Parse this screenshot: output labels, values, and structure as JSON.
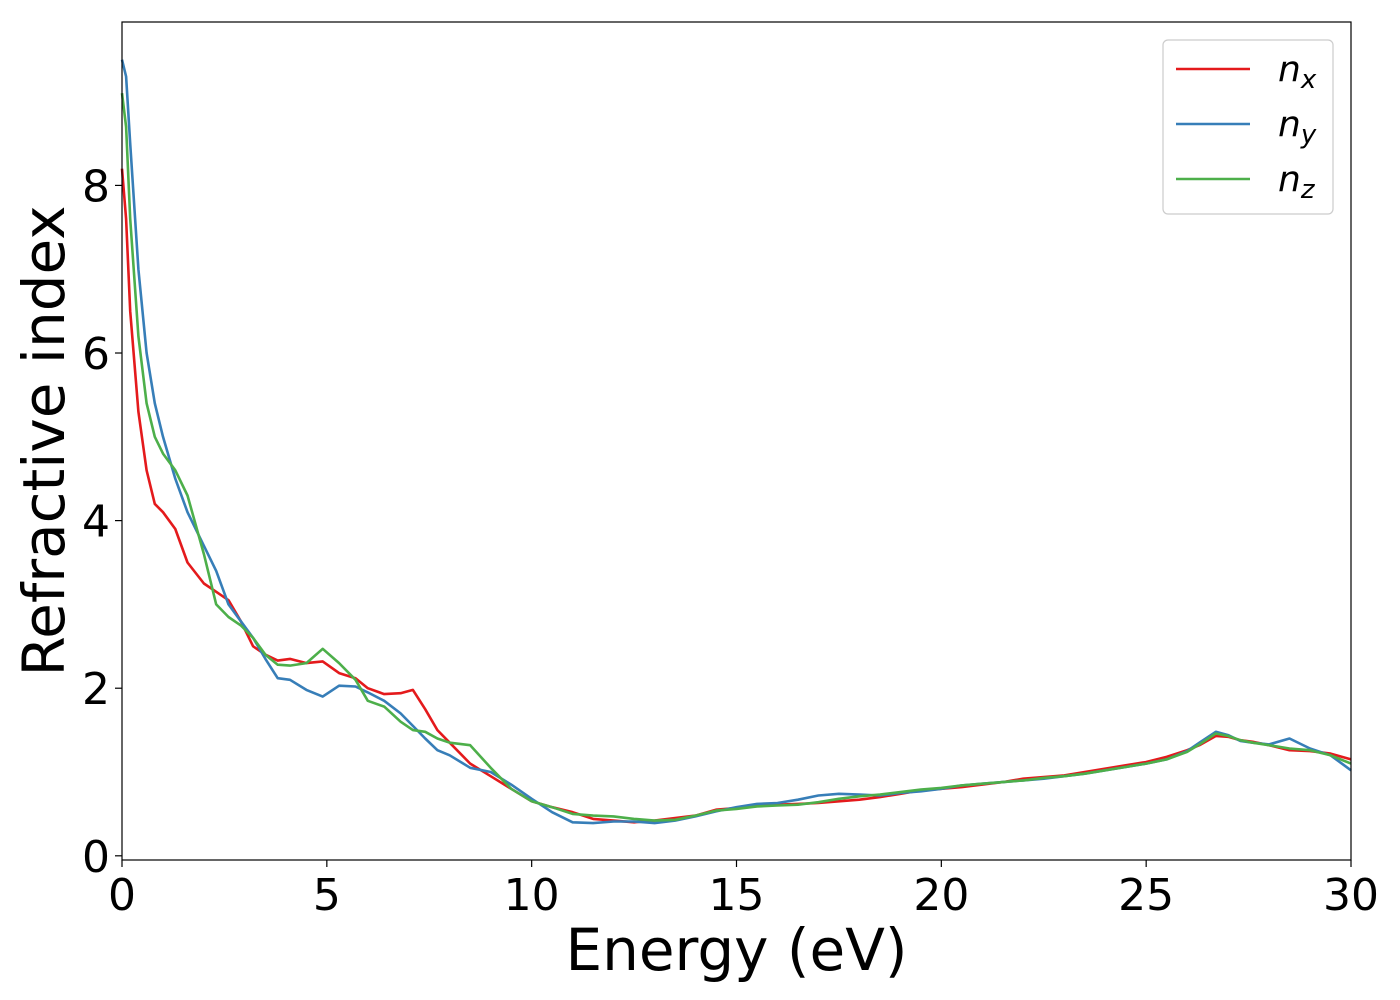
{
  "chart_data": {
    "type": "line",
    "title": "",
    "xlabel": "Energy (eV)",
    "ylabel": "Refractive index",
    "xlim": [
      0,
      30
    ],
    "ylim": [
      -0.05,
      9.95
    ],
    "xticks": [
      0,
      5,
      10,
      15,
      20,
      25,
      30
    ],
    "yticks": [
      0,
      2,
      4,
      6,
      8
    ],
    "grid": false,
    "legend_position": "top-right",
    "series": [
      {
        "name": "n",
        "sub": "x",
        "color": "#e41a1c",
        "x": [
          0,
          0.1,
          0.2,
          0.4,
          0.6,
          0.8,
          1.0,
          1.3,
          1.6,
          2.0,
          2.3,
          2.6,
          2.9,
          3.2,
          3.5,
          3.8,
          4.1,
          4.5,
          4.9,
          5.3,
          5.7,
          6.0,
          6.4,
          6.8,
          7.1,
          7.4,
          7.7,
          8.0,
          8.5,
          9.0,
          9.5,
          10.0,
          10.5,
          11.0,
          11.5,
          12.0,
          12.5,
          13.0,
          13.5,
          14.0,
          14.5,
          15.0,
          15.5,
          16.0,
          16.5,
          17.0,
          17.5,
          18.0,
          18.5,
          19.0,
          19.5,
          20.0,
          20.5,
          21.0,
          21.5,
          22.0,
          22.5,
          23.0,
          23.5,
          24.0,
          24.5,
          25.0,
          25.5,
          26.0,
          26.3,
          26.7,
          27.0,
          27.3,
          27.6,
          28.0,
          28.5,
          29.0,
          29.5,
          30.0
        ],
        "y": [
          8.2,
          7.6,
          6.5,
          5.3,
          4.6,
          4.2,
          4.1,
          3.9,
          3.5,
          3.25,
          3.15,
          3.05,
          2.8,
          2.5,
          2.4,
          2.33,
          2.35,
          2.3,
          2.32,
          2.18,
          2.12,
          2.0,
          1.93,
          1.94,
          1.98,
          1.75,
          1.5,
          1.35,
          1.1,
          0.95,
          0.8,
          0.65,
          0.58,
          0.52,
          0.44,
          0.42,
          0.4,
          0.42,
          0.45,
          0.48,
          0.55,
          0.57,
          0.6,
          0.61,
          0.62,
          0.63,
          0.65,
          0.67,
          0.7,
          0.74,
          0.78,
          0.8,
          0.82,
          0.85,
          0.88,
          0.92,
          0.94,
          0.96,
          1.0,
          1.04,
          1.08,
          1.12,
          1.18,
          1.26,
          1.32,
          1.43,
          1.42,
          1.38,
          1.36,
          1.32,
          1.26,
          1.25,
          1.22,
          1.15
        ]
      },
      {
        "name": "n",
        "sub": "y",
        "color": "#377eb8",
        "x": [
          0,
          0.1,
          0.2,
          0.4,
          0.6,
          0.8,
          1.0,
          1.3,
          1.6,
          2.0,
          2.3,
          2.6,
          2.9,
          3.2,
          3.5,
          3.8,
          4.1,
          4.5,
          4.9,
          5.3,
          5.7,
          6.0,
          6.4,
          6.8,
          7.1,
          7.4,
          7.7,
          8.0,
          8.5,
          9.0,
          9.5,
          10.0,
          10.5,
          11.0,
          11.5,
          12.0,
          12.5,
          13.0,
          13.5,
          14.0,
          14.5,
          15.0,
          15.5,
          16.0,
          16.5,
          17.0,
          17.5,
          18.0,
          18.5,
          19.0,
          19.5,
          20.0,
          20.5,
          21.0,
          21.5,
          22.0,
          22.5,
          23.0,
          23.5,
          24.0,
          24.5,
          25.0,
          25.5,
          26.0,
          26.3,
          26.7,
          27.0,
          27.3,
          27.6,
          28.0,
          28.5,
          29.0,
          29.5,
          30.0
        ],
        "y": [
          9.5,
          9.3,
          8.5,
          7.0,
          6.0,
          5.4,
          5.0,
          4.5,
          4.1,
          3.7,
          3.4,
          3.0,
          2.8,
          2.6,
          2.35,
          2.12,
          2.1,
          1.98,
          1.9,
          2.03,
          2.02,
          1.95,
          1.85,
          1.7,
          1.55,
          1.4,
          1.26,
          1.2,
          1.05,
          1.0,
          0.85,
          0.68,
          0.52,
          0.4,
          0.39,
          0.41,
          0.41,
          0.39,
          0.42,
          0.47,
          0.53,
          0.58,
          0.62,
          0.63,
          0.67,
          0.72,
          0.74,
          0.73,
          0.72,
          0.75,
          0.77,
          0.8,
          0.84,
          0.86,
          0.88,
          0.9,
          0.92,
          0.95,
          0.98,
          1.02,
          1.06,
          1.1,
          1.15,
          1.25,
          1.35,
          1.48,
          1.44,
          1.37,
          1.35,
          1.33,
          1.4,
          1.28,
          1.2,
          1.02
        ]
      },
      {
        "name": "n",
        "sub": "z",
        "color": "#4daf4a",
        "x": [
          0,
          0.1,
          0.2,
          0.4,
          0.6,
          0.8,
          1.0,
          1.3,
          1.6,
          2.0,
          2.3,
          2.6,
          2.9,
          3.2,
          3.5,
          3.8,
          4.1,
          4.5,
          4.9,
          5.3,
          5.7,
          6.0,
          6.4,
          6.8,
          7.1,
          7.4,
          7.7,
          8.0,
          8.5,
          9.0,
          9.5,
          10.0,
          10.5,
          11.0,
          11.5,
          12.0,
          12.5,
          13.0,
          13.5,
          14.0,
          14.5,
          15.0,
          15.5,
          16.0,
          16.5,
          17.0,
          17.5,
          18.0,
          18.5,
          19.0,
          19.5,
          20.0,
          20.5,
          21.0,
          21.5,
          22.0,
          22.5,
          23.0,
          23.5,
          24.0,
          24.5,
          25.0,
          25.5,
          26.0,
          26.3,
          26.7,
          27.0,
          27.3,
          27.6,
          28.0,
          28.5,
          29.0,
          29.5,
          30.0
        ],
        "y": [
          9.1,
          8.7,
          7.6,
          6.2,
          5.4,
          5.0,
          4.8,
          4.6,
          4.3,
          3.6,
          3.0,
          2.85,
          2.75,
          2.6,
          2.4,
          2.28,
          2.27,
          2.3,
          2.47,
          2.3,
          2.1,
          1.85,
          1.78,
          1.6,
          1.5,
          1.48,
          1.4,
          1.35,
          1.32,
          1.05,
          0.8,
          0.65,
          0.58,
          0.5,
          0.48,
          0.47,
          0.44,
          0.42,
          0.43,
          0.48,
          0.54,
          0.56,
          0.59,
          0.6,
          0.61,
          0.64,
          0.68,
          0.71,
          0.73,
          0.76,
          0.79,
          0.81,
          0.84,
          0.86,
          0.88,
          0.9,
          0.93,
          0.95,
          0.98,
          1.02,
          1.06,
          1.1,
          1.15,
          1.24,
          1.33,
          1.46,
          1.43,
          1.38,
          1.35,
          1.32,
          1.28,
          1.26,
          1.2,
          1.1
        ]
      }
    ]
  }
}
